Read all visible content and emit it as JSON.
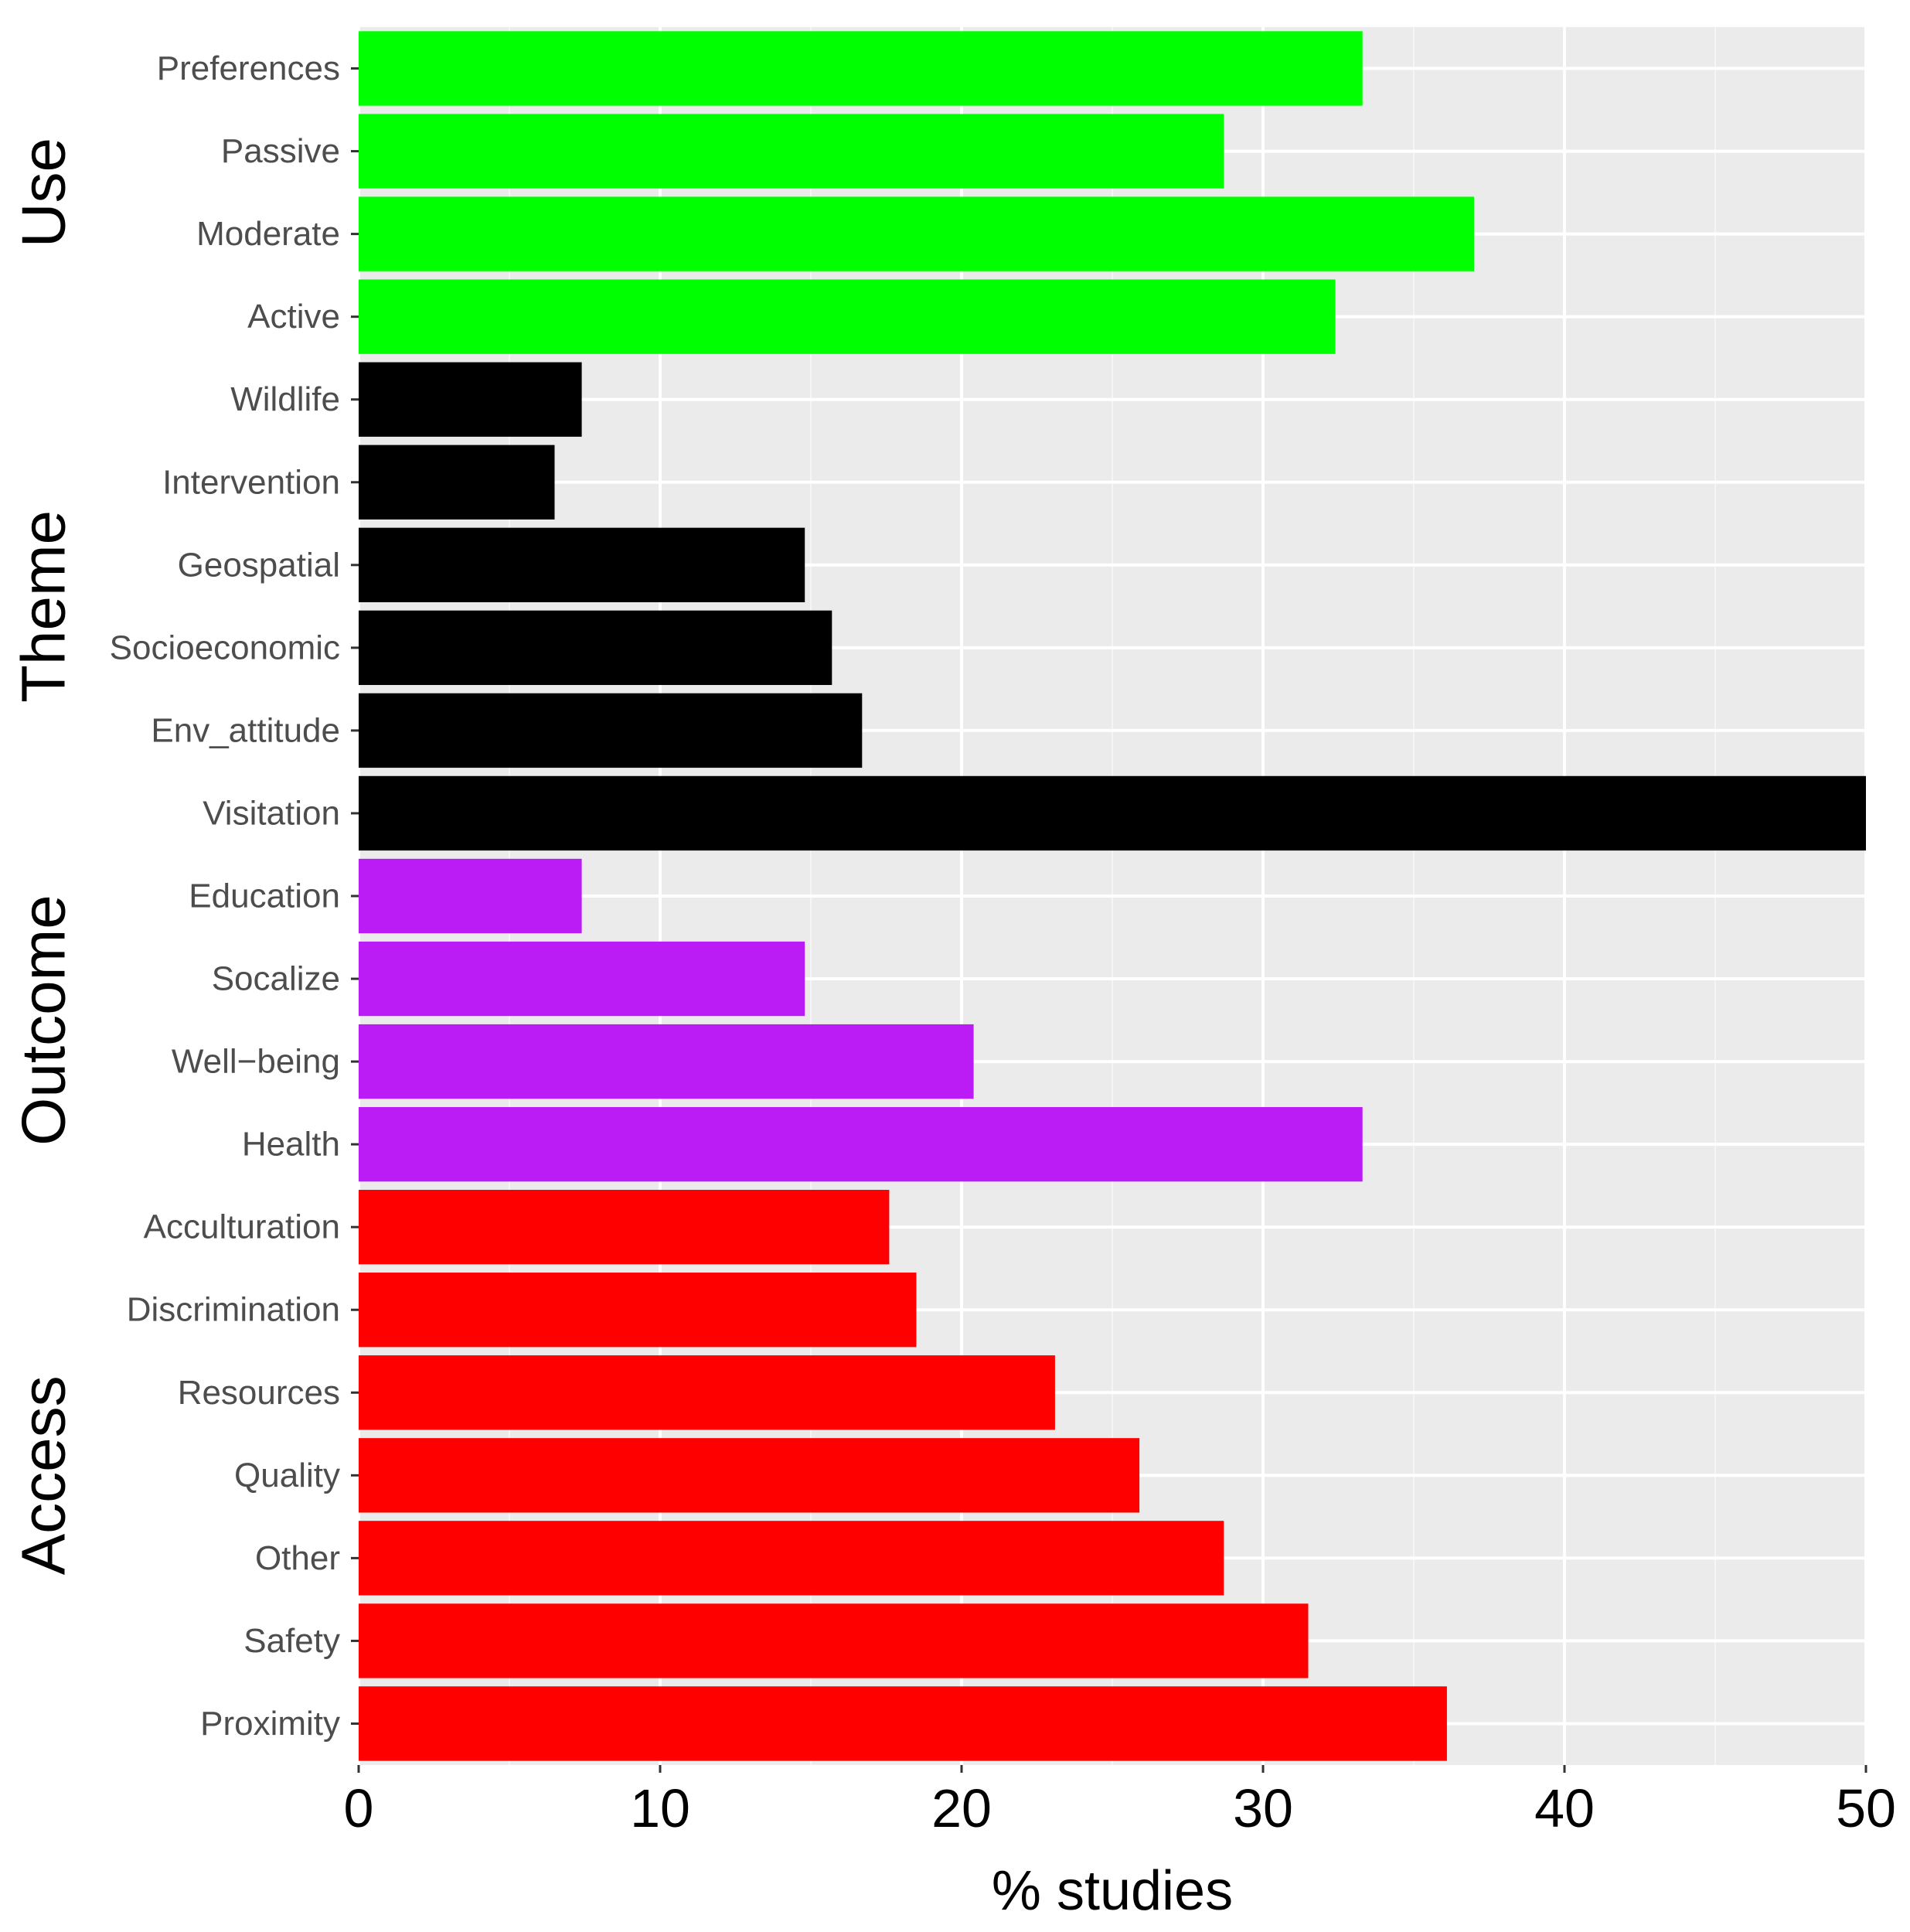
{
  "chart_data": {
    "type": "bar",
    "orientation": "horizontal",
    "title": "",
    "xlabel": "% studies",
    "ylabel": "",
    "xlim": [
      0,
      50
    ],
    "x_ticks": [
      0,
      10,
      20,
      30,
      40,
      50
    ],
    "grid": true,
    "legend": "none",
    "groups": [
      {
        "name": "Use",
        "color": "#00ff00",
        "categories": [
          "Preferences",
          "Passive",
          "Moderate",
          "Active"
        ],
        "values": [
          33.3,
          28.7,
          37.0,
          32.4
        ]
      },
      {
        "name": "Theme",
        "color": "#000000",
        "categories": [
          "Wildlife",
          "Intervention",
          "Geospatial",
          "Socioeconomic",
          "Env_attitude",
          "Visitation"
        ],
        "values": [
          7.4,
          6.5,
          14.8,
          15.7,
          16.7,
          50.0
        ]
      },
      {
        "name": "Outcome",
        "color": "#bb1cf5",
        "categories": [
          "Education",
          "Socalize",
          "Well−being",
          "Health"
        ],
        "values": [
          7.4,
          14.8,
          20.4,
          33.3
        ]
      },
      {
        "name": "Access",
        "color": "#ff0000",
        "categories": [
          "Acculturation",
          "Discrimination",
          "Resources",
          "Quality",
          "Other",
          "Safety",
          "Proximity"
        ],
        "values": [
          17.6,
          18.5,
          23.1,
          25.9,
          28.7,
          31.5,
          36.1
        ]
      }
    ]
  }
}
